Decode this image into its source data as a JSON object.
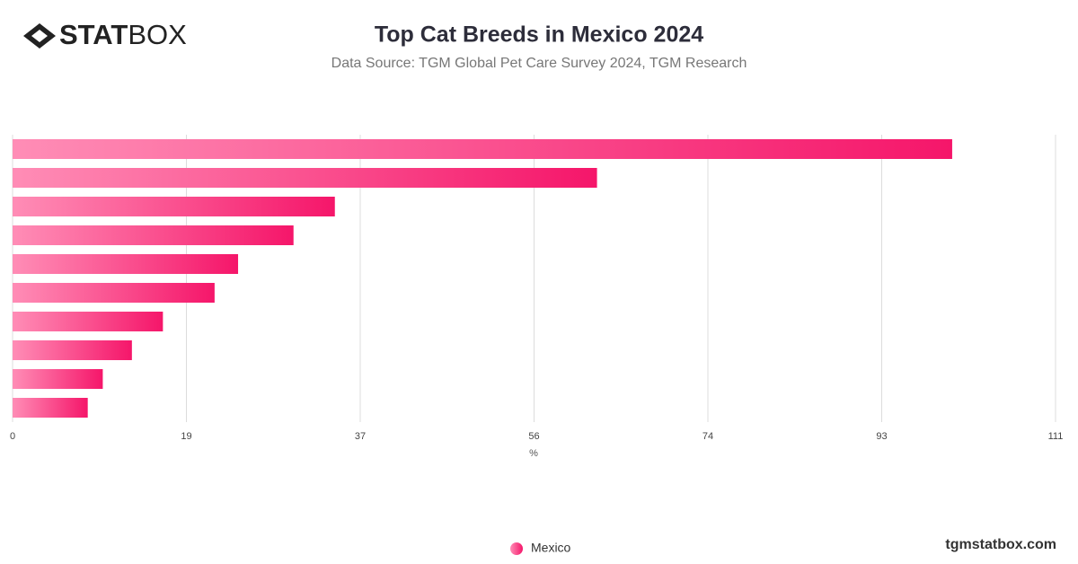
{
  "logo": {
    "bold": "STAT",
    "light": "BOX"
  },
  "footer": "tgmstatbox.com",
  "chart_data": {
    "type": "hbar",
    "title": "Top Cat Breeds in Mexico 2024",
    "subtitle": "Data Source: TGM Global Pet Care Survey 2024, TGM Research",
    "x_label": "%",
    "categories": [
      null,
      null,
      null,
      null,
      null,
      null,
      null,
      null,
      null,
      null
    ],
    "series": [
      {
        "name": "Mexico",
        "color": "#f5166a",
        "values": [
          100,
          62.2,
          34.3,
          29.9,
          24,
          21.5,
          16,
          12.7,
          9.6,
          8
        ]
      }
    ],
    "xlim": [
      0,
      111
    ],
    "xticks": [
      0,
      {
        "value": 18.5,
        "label": "19"
      },
      37,
      {
        "value": 55.5,
        "label": "56"
      },
      74,
      {
        "value": 92.5,
        "label": "93"
      },
      111
    ],
    "grid": true,
    "legend": "bottom"
  }
}
